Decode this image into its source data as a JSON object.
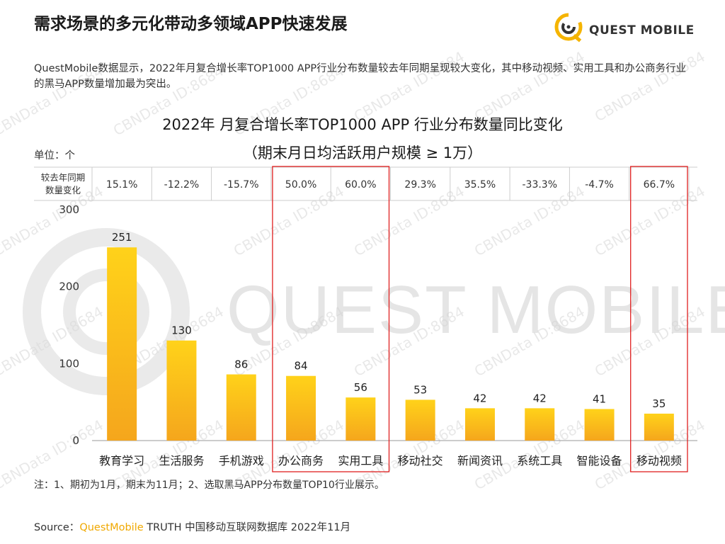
{
  "header": {
    "title": "需求场景的多元化带动多领域APP快速发展",
    "brand": "QUEST MOBILE"
  },
  "description": "QuestMobile数据显示，2022年月复合增长率TOP1000 APP行业分布数量较去年同期呈现较大变化，其中移动视频、实用工具和办公商务行业的黑马APP数量增加最为突出。",
  "watermark": {
    "id_text": "CBNData ID:8684",
    "logo_text": "QUEST MOBILE"
  },
  "unit_label": "单位：个",
  "yoy_row_label_line1": "较去年同期",
  "yoy_row_label_line2": "数量变化",
  "chart_data": {
    "type": "bar",
    "title": "2022年 月复合增长率TOP1000 APP 行业分布数量同比变化",
    "subtitle": "（期末月日均活跃用户规模 ≥ 1万）",
    "categories": [
      "教育学习",
      "生活服务",
      "手机游戏",
      "办公商务",
      "实用工具",
      "移动社交",
      "新闻资讯",
      "系统工具",
      "智能设备",
      "移动视频"
    ],
    "values": [
      251,
      130,
      86,
      84,
      56,
      53,
      42,
      42,
      41,
      35
    ],
    "yoy_change": [
      "15.1%",
      "-12.2%",
      "-15.7%",
      "50.0%",
      "60.0%",
      "29.3%",
      "35.5%",
      "-33.3%",
      "-4.7%",
      "66.7%"
    ],
    "yticks": [
      0,
      100,
      200,
      300
    ],
    "ylim": [
      0,
      300
    ],
    "highlight_groups": [
      [
        3,
        4
      ],
      [
        9
      ]
    ],
    "colors": {
      "bar_top": "#ffd21a",
      "bar_bottom": "#f5a61c",
      "highlight_box": "#e02020",
      "grid": "#cccccc"
    }
  },
  "footnote": "注：1、期初为1月，期末为11月；2、选取黑马APP分布数量TOP10行业展示。",
  "source": {
    "prefix": "Source：",
    "brand": "QuestMobile",
    "rest": " TRUTH 中国移动互联网数据库 2022年11月"
  }
}
